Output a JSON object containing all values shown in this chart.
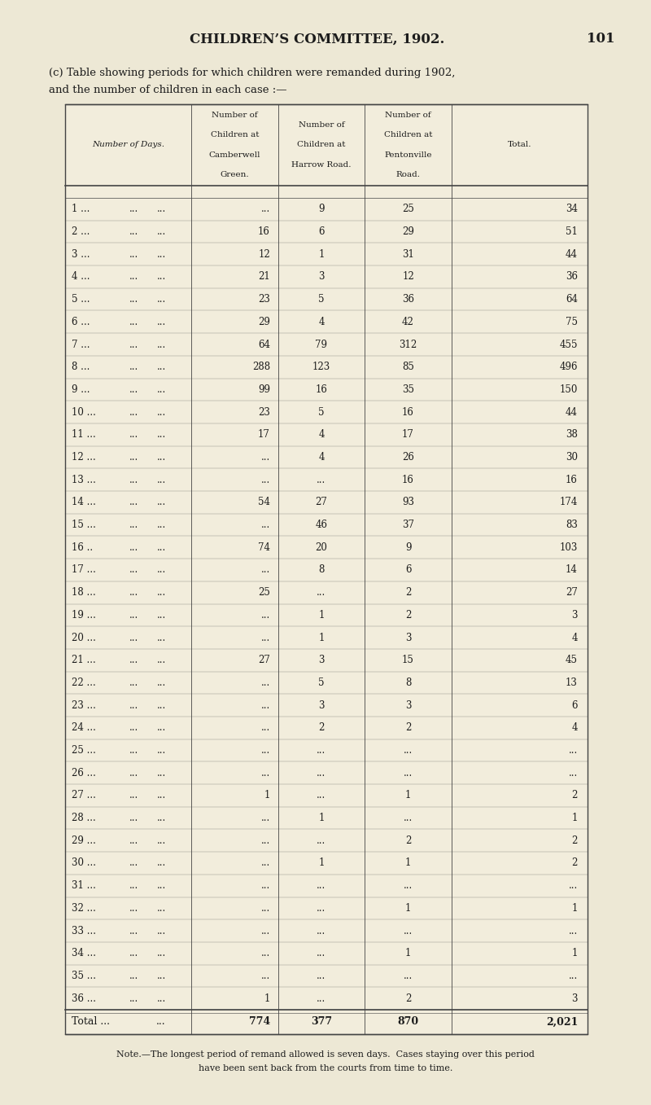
{
  "page_title": "CHILDREN’S COMMITTEE, 1902.",
  "page_number": "101",
  "subtitle_line1": "(c) Table showing periods for which children were remanded during 1902,",
  "subtitle_line2": "and the number of children in each case :—",
  "note_line1": "Note.—The longest period of remand allowed is seven days.  Cases staying over this period",
  "note_line2": "have been sent back from the courts from time to time.",
  "col0_header_lines": [
    "Number of Days."
  ],
  "col1_header_lines": [
    "Number of",
    "Children at",
    "Camberwell",
    "Green."
  ],
  "col2_header_lines": [
    "Number of",
    "Children at",
    "Harrow Road."
  ],
  "col3_header_lines": [
    "Number of",
    "Children at",
    "Pentonville",
    "Road."
  ],
  "col4_header_lines": [
    "Total."
  ],
  "rows": [
    [
      "1 ...",
      "...",
      "...",
      "9",
      "25",
      "34"
    ],
    [
      "2 ...",
      "...",
      "...",
      "16",
      "6",
      "29",
      "51"
    ],
    [
      "3 ...",
      "...",
      "...",
      "12",
      "1",
      "31",
      "44"
    ],
    [
      "4 ...",
      "...",
      "...",
      "21",
      "3",
      "12",
      "36"
    ],
    [
      "5 ...",
      "...",
      "...",
      "23",
      "5",
      "36",
      "64"
    ],
    [
      "6 ...",
      "...",
      "...",
      "29",
      "4",
      "42",
      "75"
    ],
    [
      "7 ...",
      "...",
      "...",
      "64",
      "79",
      "312",
      "455"
    ],
    [
      "8 ...",
      "...",
      "...",
      "288",
      "123",
      "85",
      "496"
    ],
    [
      "9 ...",
      "...",
      "...",
      "99",
      "16",
      "35",
      "150"
    ],
    [
      "10 ...",
      "...",
      "...",
      "23",
      "5",
      "16",
      "44"
    ],
    [
      "11 ...",
      "...",
      "...",
      "17",
      "4",
      "17",
      "38"
    ],
    [
      "12 ...",
      "...",
      "...",
      "...",
      "4",
      "26",
      "30"
    ],
    [
      "13 ...",
      "...",
      "...",
      "...",
      "...",
      "16",
      "16"
    ],
    [
      "14 ...",
      "...",
      "...",
      "54",
      "27",
      "93",
      "174"
    ],
    [
      "15 ...",
      "...",
      "...",
      "...",
      "46",
      "37",
      "83"
    ],
    [
      "16 ..",
      "...",
      "...",
      "74",
      "20",
      "9",
      "103"
    ],
    [
      "17 ...",
      "...",
      "...",
      "...",
      "8",
      "6",
      "14"
    ],
    [
      "18 ...",
      "...",
      "...",
      "25",
      "...",
      "2",
      "27"
    ],
    [
      "19 ...",
      "...",
      "...",
      "...",
      "1",
      "2",
      "3"
    ],
    [
      "20 ...",
      "...",
      "...",
      "...",
      "1",
      "3",
      "4"
    ],
    [
      "21 ...",
      "...",
      "...",
      "27",
      "3",
      "15",
      "45"
    ],
    [
      "22 ...",
      "...",
      "...",
      "...",
      "5",
      "8",
      "13"
    ],
    [
      "23 ...",
      "...",
      "...",
      "...",
      "3",
      "3",
      "6"
    ],
    [
      "24 ...",
      "...",
      "...",
      "...",
      "2",
      "2",
      "4"
    ],
    [
      "25 ...",
      "...",
      "...",
      "...",
      "...",
      "...",
      "..."
    ],
    [
      "26 ...",
      "...",
      "...",
      "...",
      "...",
      "...",
      "..."
    ],
    [
      "27 ...",
      "...",
      "...",
      "1",
      "...",
      "1",
      "2"
    ],
    [
      "28 ...",
      "...",
      "...",
      "...",
      "1",
      "...",
      "1"
    ],
    [
      "29 ...",
      "...",
      "...",
      "...",
      "...",
      "2",
      "2"
    ],
    [
      "30 ...",
      "...",
      "...",
      "...",
      "1",
      "1",
      "2"
    ],
    [
      "31 ...",
      "...",
      "...",
      "...",
      "...",
      "...",
      "..."
    ],
    [
      "32 ...",
      "...",
      "...",
      "...",
      "...",
      "1",
      "1"
    ],
    [
      "33 ...",
      "...",
      "...",
      "...",
      "...",
      "...",
      "..."
    ],
    [
      "34 ...",
      "...",
      "...",
      "...",
      "...",
      "1",
      "1"
    ],
    [
      "35 ...",
      "...",
      "...",
      "...",
      "...",
      "...",
      "..."
    ],
    [
      "36 ...",
      "...",
      "...",
      "1",
      "...",
      "2",
      "3"
    ]
  ],
  "total_label": "Total ...",
  "total_label2": "...",
  "total_camberwell": "774",
  "total_harrow": "377",
  "total_pentonville": "870",
  "total_total": "2,021",
  "bg_color": "#ede8d5",
  "table_bg": "#f2eddc",
  "text_color": "#1c1c1c",
  "line_color": "#444444",
  "title_fontsize": 12,
  "subtitle_fontsize": 9.5,
  "note_fontsize": 8,
  "header_fontsize": 7.5,
  "cell_fontsize": 8.5,
  "total_fontsize": 9
}
